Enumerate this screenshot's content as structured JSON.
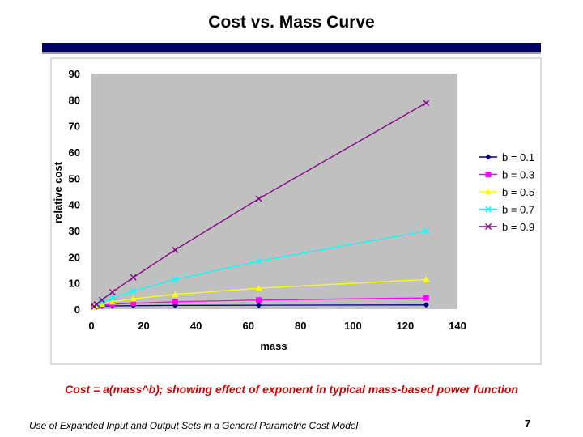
{
  "slide": {
    "title": "Cost vs. Mass Curve",
    "caption": "Cost = a(mass^b); showing effect of exponent in typical mass-based power function",
    "footer": "Use of Expanded Input and Output Sets in a General Parametric Cost Model",
    "page_number": "7"
  },
  "colors": {
    "header_bar": "#000066",
    "header_shadow": "#9a9aa8",
    "plot_area": "#c0c0c0",
    "caption": "#cc0000"
  },
  "chart_data": {
    "type": "line",
    "title": "",
    "xlabel": "mass",
    "ylabel": "relative cost",
    "xlim": [
      0,
      140
    ],
    "ylim": [
      0,
      90
    ],
    "xticks": [
      0,
      20,
      40,
      60,
      80,
      100,
      120,
      140
    ],
    "yticks": [
      0,
      10,
      20,
      30,
      40,
      50,
      60,
      70,
      80,
      90
    ],
    "grid": false,
    "legend_position": "right",
    "x": [
      1,
      2,
      4,
      8,
      16,
      32,
      64,
      128
    ],
    "series": [
      {
        "name": "b = 0.1",
        "color": "#000080",
        "marker": "diamond",
        "values": [
          1.0,
          1.07,
          1.15,
          1.23,
          1.32,
          1.41,
          1.52,
          1.62
        ]
      },
      {
        "name": "b = 0.3",
        "color": "#ff00ff",
        "marker": "square",
        "values": [
          1.0,
          1.23,
          1.52,
          1.87,
          2.3,
          2.83,
          3.48,
          4.29
        ]
      },
      {
        "name": "b = 0.5",
        "color": "#ffff00",
        "marker": "triangle",
        "values": [
          1.0,
          1.41,
          2.0,
          2.83,
          4.0,
          5.66,
          8.0,
          11.31
        ]
      },
      {
        "name": "b = 0.7",
        "color": "#00ffff",
        "marker": "x",
        "values": [
          1.0,
          1.62,
          2.64,
          4.29,
          6.96,
          11.31,
          18.38,
          29.86
        ]
      },
      {
        "name": "b = 0.9",
        "color": "#800080",
        "marker": "x",
        "values": [
          1.0,
          1.87,
          3.48,
          6.5,
          12.13,
          22.63,
          42.22,
          78.79
        ]
      }
    ]
  }
}
